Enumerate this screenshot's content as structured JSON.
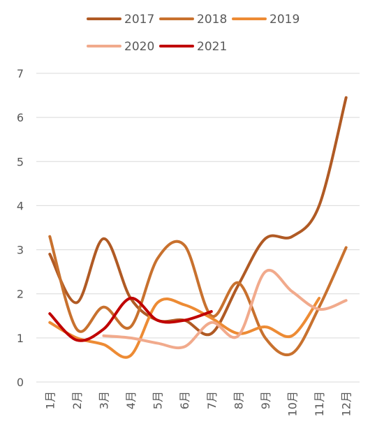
{
  "chart_data": {
    "type": "line",
    "categories": [
      "1月",
      "2月",
      "3月",
      "4月",
      "5月",
      "6月",
      "7月",
      "8月",
      "9月",
      "10月",
      "11月",
      "12月"
    ],
    "series": [
      {
        "name": "2017",
        "color": "#b05a24",
        "values": [
          2.9,
          1.8,
          3.25,
          1.9,
          1.4,
          1.4,
          1.1,
          2.2,
          3.25,
          3.3,
          4.0,
          6.45
        ]
      },
      {
        "name": "2018",
        "color": "#c8712e",
        "values": [
          3.3,
          1.2,
          1.7,
          1.25,
          2.8,
          3.1,
          1.5,
          2.25,
          1.0,
          0.65,
          1.7,
          3.05
        ]
      },
      {
        "name": "2019",
        "color": "#ed8b34",
        "values": [
          1.35,
          1.0,
          0.85,
          0.6,
          1.8,
          1.75,
          1.45,
          1.1,
          1.25,
          1.05,
          1.9,
          null
        ]
      },
      {
        "name": "2020",
        "color": "#f1aa8c",
        "values": [
          null,
          null,
          1.05,
          1.0,
          0.88,
          0.8,
          1.35,
          1.05,
          2.5,
          2.05,
          1.65,
          1.85
        ]
      },
      {
        "name": "2021",
        "color": "#c00000",
        "values": [
          1.55,
          0.95,
          1.2,
          1.9,
          1.4,
          1.4,
          1.6,
          null,
          null,
          null,
          null,
          null
        ]
      }
    ],
    "ylim": [
      0,
      7
    ],
    "yticks": [
      0,
      1,
      2,
      3,
      4,
      5,
      6,
      7
    ],
    "grid": true,
    "legend_position": "top"
  }
}
